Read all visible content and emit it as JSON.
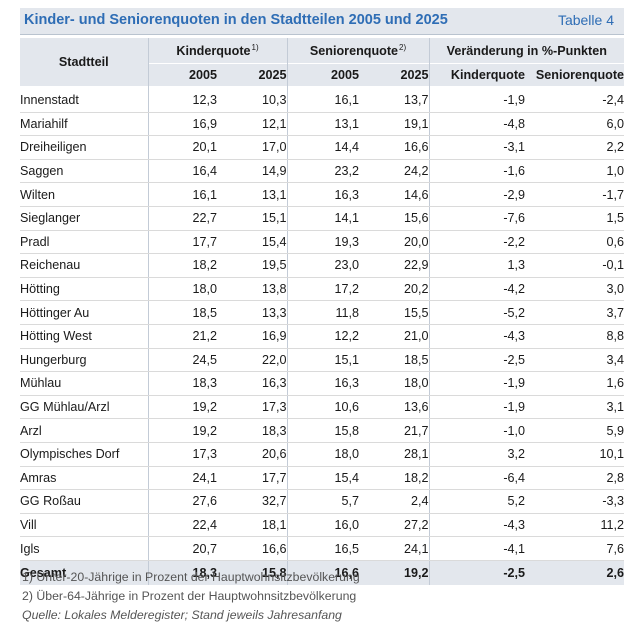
{
  "header": {
    "title": "Kinder- und Seniorenquoten in den Stadtteilen 2005 und 2025",
    "label": "Tabelle 4"
  },
  "table": {
    "col_district": "Stadtteil",
    "group_kinder": "Kinderquote",
    "group_kinder_note": "1)",
    "group_senioren": "Seniorenquote",
    "group_senioren_note": "2)",
    "group_change": "Veränderung in %-Punkten",
    "sub": [
      "2005",
      "2025",
      "2005",
      "2025",
      "Kinderquote",
      "Seniorenquote"
    ],
    "rows": [
      [
        "Innenstadt",
        "12,3",
        "10,3",
        "16,1",
        "13,7",
        "-1,9",
        "-2,4"
      ],
      [
        "Mariahilf",
        "16,9",
        "12,1",
        "13,1",
        "19,1",
        "-4,8",
        "6,0"
      ],
      [
        "Dreiheiligen",
        "20,1",
        "17,0",
        "14,4",
        "16,6",
        "-3,1",
        "2,2"
      ],
      [
        "Saggen",
        "16,4",
        "14,9",
        "23,2",
        "24,2",
        "-1,6",
        "1,0"
      ],
      [
        "Wilten",
        "16,1",
        "13,1",
        "16,3",
        "14,6",
        "-2,9",
        "-1,7"
      ],
      [
        "Sieglanger",
        "22,7",
        "15,1",
        "14,1",
        "15,6",
        "-7,6",
        "1,5"
      ],
      [
        "Pradl",
        "17,7",
        "15,4",
        "19,3",
        "20,0",
        "-2,2",
        "0,6"
      ],
      [
        "Reichenau",
        "18,2",
        "19,5",
        "23,0",
        "22,9",
        "1,3",
        "-0,1"
      ],
      [
        "Hötting",
        "18,0",
        "13,8",
        "17,2",
        "20,2",
        "-4,2",
        "3,0"
      ],
      [
        "Höttinger Au",
        "18,5",
        "13,3",
        "11,8",
        "15,5",
        "-5,2",
        "3,7"
      ],
      [
        "Hötting West",
        "21,2",
        "16,9",
        "12,2",
        "21,0",
        "-4,3",
        "8,8"
      ],
      [
        "Hungerburg",
        "24,5",
        "22,0",
        "15,1",
        "18,5",
        "-2,5",
        "3,4"
      ],
      [
        "Mühlau",
        "18,3",
        "16,3",
        "16,3",
        "18,0",
        "-1,9",
        "1,6"
      ],
      [
        "GG Mühlau/Arzl",
        "19,2",
        "17,3",
        "10,6",
        "13,6",
        "-1,9",
        "3,1"
      ],
      [
        "Arzl",
        "19,2",
        "18,3",
        "15,8",
        "21,7",
        "-1,0",
        "5,9"
      ],
      [
        "Olympisches Dorf",
        "17,3",
        "20,6",
        "18,0",
        "28,1",
        "3,2",
        "10,1"
      ],
      [
        "Amras",
        "24,1",
        "17,7",
        "15,4",
        "18,2",
        "-6,4",
        "2,8"
      ],
      [
        "GG Roßau",
        "27,6",
        "32,7",
        "5,7",
        "2,4",
        "5,2",
        "-3,3"
      ],
      [
        "Vill",
        "22,4",
        "18,1",
        "16,0",
        "27,2",
        "-4,3",
        "11,2"
      ],
      [
        "Igls",
        "20,7",
        "16,6",
        "16,5",
        "24,1",
        "-4,1",
        "7,6"
      ]
    ],
    "total": [
      "Gesamt",
      "18,3",
      "15,8",
      "16,6",
      "19,2",
      "-2,5",
      "2,6"
    ]
  },
  "footnotes": {
    "note1": "1) Unter-20-Jährige in Prozent der Hauptwohnsitzbevölkerung",
    "note2": "2) Über-64-Jährige in Prozent der Hauptwohnsitzbevölkerung",
    "source": "Quelle: Lokales Melderegister; Stand jeweils Jahresanfang"
  }
}
